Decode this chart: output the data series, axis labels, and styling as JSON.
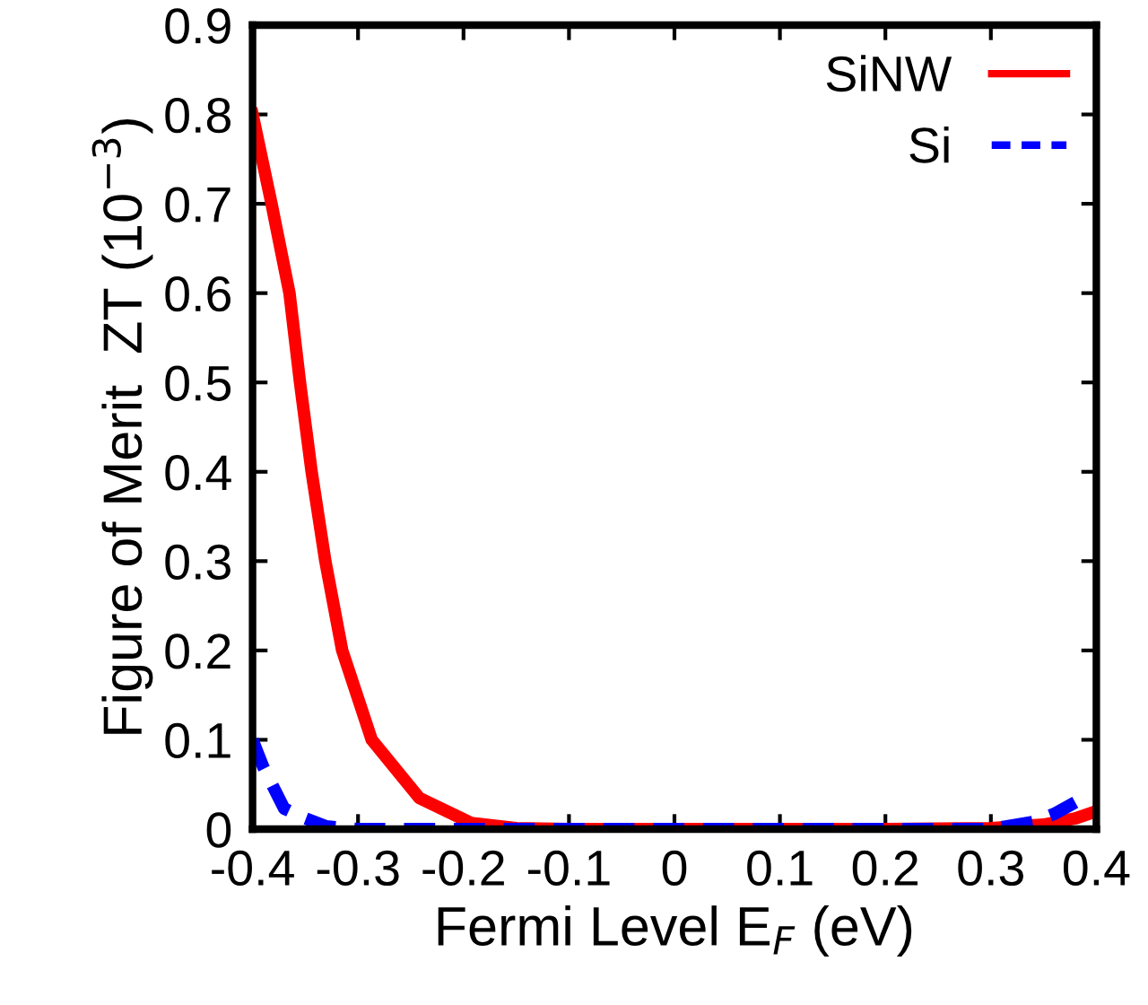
{
  "chart_data": {
    "type": "line",
    "xlabel": "Fermi Level E$_{F}$ (eV)",
    "ylabel": "Figure of Merit  ZT (10$^{−3}$)",
    "xlim": [
      -0.4,
      0.4
    ],
    "ylim": [
      0,
      0.9
    ],
    "xticks": [
      -0.4,
      -0.3,
      -0.2,
      -0.1,
      0,
      0.1,
      0.2,
      0.3,
      0.4
    ],
    "yticks": [
      0,
      0.1,
      0.2,
      0.3,
      0.4,
      0.5,
      0.6,
      0.7,
      0.8,
      0.9
    ],
    "grid": false,
    "legend": "top right",
    "series": [
      {
        "name": "SiNW",
        "color": "#ff0000",
        "line_style": "solid",
        "x": [
          -0.4,
          -0.382,
          -0.365,
          -0.355,
          -0.344,
          -0.331,
          -0.315,
          -0.287,
          -0.242,
          -0.193,
          -0.15,
          -0.1,
          0,
          0.1,
          0.2,
          0.3,
          0.35,
          0.38,
          0.4
        ],
        "values": [
          0.8,
          0.7,
          0.6,
          0.5,
          0.4,
          0.3,
          0.2,
          0.1,
          0.035,
          0.007,
          0.001,
          0,
          0,
          0,
          0,
          0.001,
          0.005,
          0.012,
          0.02
        ]
      },
      {
        "name": "Si",
        "color": "#0000ff",
        "line_style": "dashed",
        "x": [
          -0.4,
          -0.39,
          -0.37,
          -0.35,
          -0.33,
          -0.3,
          -0.2,
          -0.1,
          0,
          0.1,
          0.2,
          0.3,
          0.34,
          0.36,
          0.38
        ],
        "values": [
          0.1,
          0.07,
          0.023,
          0.012,
          0.003,
          0,
          0,
          0,
          0,
          0,
          0,
          0,
          0.008,
          0.017,
          0.03
        ]
      }
    ]
  }
}
